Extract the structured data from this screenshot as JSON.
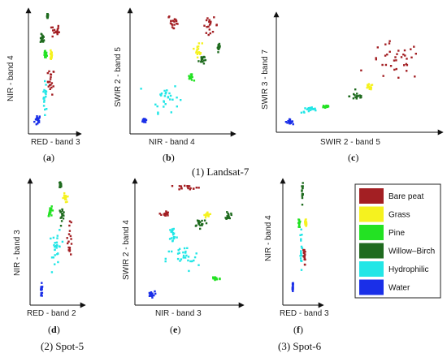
{
  "colors": {
    "Bare peat": "#a31f23",
    "Grass": "#f5f21f",
    "Pine": "#23e223",
    "Willow–Birch": "#1f6b1f",
    "Hydrophilic": "#22e6e6",
    "Water": "#1a2fe8"
  },
  "group_labels": {
    "landsat": "(1) Landsat-7",
    "spot5": "(2) Spot-5",
    "spot6": "(3) Spot-6"
  },
  "chart_data": [
    {
      "type": "scatter",
      "panel": "a",
      "xlabel": "RED - band 3",
      "ylabel": "NIR - band 4",
      "clusters": [
        {
          "class": "Water",
          "cx": 0.13,
          "cy": 0.1,
          "sx": 0.06,
          "sy": 0.04
        },
        {
          "class": "Hydrophilic",
          "cx": 0.3,
          "cy": 0.3,
          "sx": 0.04,
          "sy": 0.1
        },
        {
          "class": "Bare peat",
          "cx": 0.43,
          "cy": 0.42,
          "sx": 0.06,
          "sy": 0.09
        },
        {
          "class": "Grass",
          "cx": 0.43,
          "cy": 0.63,
          "sx": 0.02,
          "sy": 0.03
        },
        {
          "class": "Pine",
          "cx": 0.3,
          "cy": 0.64,
          "sx": 0.03,
          "sy": 0.03
        },
        {
          "class": "Willow–Birch",
          "cx": 0.24,
          "cy": 0.77,
          "sx": 0.04,
          "sy": 0.03
        },
        {
          "class": "Bare peat",
          "cx": 0.53,
          "cy": 0.83,
          "sx": 0.07,
          "sy": 0.05
        },
        {
          "class": "Willow–Birch",
          "cx": 0.35,
          "cy": 0.96,
          "sx": 0.015,
          "sy": 0.02
        }
      ]
    },
    {
      "type": "scatter",
      "panel": "b",
      "xlabel": "NIR - band 4",
      "ylabel": "SWIR 2 - band 5",
      "clusters": [
        {
          "class": "Water",
          "cx": 0.12,
          "cy": 0.1,
          "sx": 0.02,
          "sy": 0.02
        },
        {
          "class": "Hydrophilic",
          "cx": 0.33,
          "cy": 0.29,
          "sx": 0.12,
          "sy": 0.1
        },
        {
          "class": "Pine",
          "cx": 0.6,
          "cy": 0.45,
          "sx": 0.02,
          "sy": 0.02
        },
        {
          "class": "Willow–Birch",
          "cx": 0.71,
          "cy": 0.6,
          "sx": 0.025,
          "sy": 0.035
        },
        {
          "class": "Grass",
          "cx": 0.68,
          "cy": 0.68,
          "sx": 0.03,
          "sy": 0.05
        },
        {
          "class": "Willow–Birch",
          "cx": 0.89,
          "cy": 0.7,
          "sx": 0.01,
          "sy": 0.02
        },
        {
          "class": "Bare peat",
          "cx": 0.42,
          "cy": 0.9,
          "sx": 0.05,
          "sy": 0.06
        },
        {
          "class": "Bare peat",
          "cx": 0.8,
          "cy": 0.88,
          "sx": 0.07,
          "sy": 0.05
        }
      ]
    },
    {
      "type": "scatter",
      "panel": "c",
      "xlabel": "SWIR 2 - band 5",
      "ylabel": "SWIR 3 - band 7",
      "clusters": [
        {
          "class": "Water",
          "cx": 0.06,
          "cy": 0.08,
          "sx": 0.02,
          "sy": 0.015
        },
        {
          "class": "Hydrophilic",
          "cx": 0.2,
          "cy": 0.18,
          "sx": 0.05,
          "sy": 0.02
        },
        {
          "class": "Pine",
          "cx": 0.3,
          "cy": 0.21,
          "sx": 0.02,
          "sy": 0.015
        },
        {
          "class": "Willow–Birch",
          "cx": 0.5,
          "cy": 0.3,
          "sx": 0.04,
          "sy": 0.03
        },
        {
          "class": "Grass",
          "cx": 0.58,
          "cy": 0.38,
          "sx": 0.02,
          "sy": 0.02
        },
        {
          "class": "Bare peat",
          "cx": 0.75,
          "cy": 0.6,
          "sx": 0.14,
          "sy": 0.14
        }
      ]
    },
    {
      "type": "scatter",
      "panel": "d",
      "xlabel": "RED - band 2",
      "ylabel": "NIR - band 3",
      "clusters": [
        {
          "class": "Water",
          "cx": 0.17,
          "cy": 0.09,
          "sx": 0.02,
          "sy": 0.05
        },
        {
          "class": "Hydrophilic",
          "cx": 0.5,
          "cy": 0.45,
          "sx": 0.08,
          "sy": 0.13
        },
        {
          "class": "Bare peat",
          "cx": 0.77,
          "cy": 0.55,
          "sx": 0.04,
          "sy": 0.14
        },
        {
          "class": "Pine",
          "cx": 0.37,
          "cy": 0.75,
          "sx": 0.05,
          "sy": 0.03
        },
        {
          "class": "Willow–Birch",
          "cx": 0.6,
          "cy": 0.73,
          "sx": 0.05,
          "sy": 0.04
        },
        {
          "class": "Grass",
          "cx": 0.67,
          "cy": 0.86,
          "sx": 0.03,
          "sy": 0.03
        },
        {
          "class": "Willow–Birch",
          "cx": 0.57,
          "cy": 0.97,
          "sx": 0.02,
          "sy": 0.02
        }
      ]
    },
    {
      "type": "scatter",
      "panel": "e",
      "xlabel": "NIR - band 3",
      "ylabel": "SWIR 2 - band 4",
      "clusters": [
        {
          "class": "Water",
          "cx": 0.13,
          "cy": 0.07,
          "sx": 0.03,
          "sy": 0.02
        },
        {
          "class": "Hydrophilic",
          "cx": 0.45,
          "cy": 0.36,
          "sx": 0.14,
          "sy": 0.09
        },
        {
          "class": "Pine",
          "cx": 0.78,
          "cy": 0.2,
          "sx": 0.04,
          "sy": 0.02
        },
        {
          "class": "Hydrophilic",
          "cx": 0.35,
          "cy": 0.56,
          "sx": 0.03,
          "sy": 0.06
        },
        {
          "class": "Willow–Birch",
          "cx": 0.63,
          "cy": 0.66,
          "sx": 0.06,
          "sy": 0.03
        },
        {
          "class": "Grass",
          "cx": 0.7,
          "cy": 0.72,
          "sx": 0.03,
          "sy": 0.02
        },
        {
          "class": "Bare peat",
          "cx": 0.27,
          "cy": 0.73,
          "sx": 0.03,
          "sy": 0.02
        },
        {
          "class": "Willow–Birch",
          "cx": 0.91,
          "cy": 0.72,
          "sx": 0.02,
          "sy": 0.03
        },
        {
          "class": "Bare peat",
          "cx": 0.5,
          "cy": 0.95,
          "sx": 0.1,
          "sy": 0.015
        }
      ]
    },
    {
      "type": "scatter",
      "panel": "f",
      "xlabel": "RED - band 3",
      "ylabel": "NIR - band 4",
      "clusters": [
        {
          "class": "Water",
          "cx": 0.2,
          "cy": 0.13,
          "sx": 0.015,
          "sy": 0.05
        },
        {
          "class": "Hydrophilic",
          "cx": 0.45,
          "cy": 0.42,
          "sx": 0.03,
          "sy": 0.13
        },
        {
          "class": "Bare peat",
          "cx": 0.55,
          "cy": 0.38,
          "sx": 0.03,
          "sy": 0.06
        },
        {
          "class": "Pine",
          "cx": 0.4,
          "cy": 0.65,
          "sx": 0.02,
          "sy": 0.03
        },
        {
          "class": "Grass",
          "cx": 0.6,
          "cy": 0.66,
          "sx": 0.02,
          "sy": 0.03
        },
        {
          "class": "Willow–Birch",
          "cx": 0.5,
          "cy": 0.9,
          "sx": 0.015,
          "sy": 0.07
        }
      ]
    }
  ],
  "legend": [
    {
      "label": "Bare peat"
    },
    {
      "label": "Grass"
    },
    {
      "label": "Pine"
    },
    {
      "label": "Willow–Birch"
    },
    {
      "label": "Hydrophilic"
    },
    {
      "label": "Water"
    }
  ]
}
